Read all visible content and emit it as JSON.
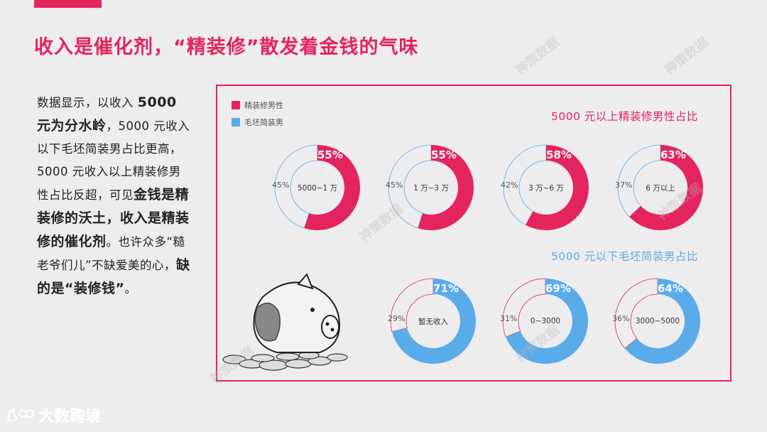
{
  "title": "收入是催化剂，“精装修”散发着金钱的气味",
  "body": {
    "p1": "数据显示，以收入 ",
    "b1": "5000 元为分水岭",
    "p2": "，5000 元收入以下毛坯简装男占比更高， 5000 元收入以上精装修男性占比反超，可见",
    "b2": "金钱是精装修的沃土，收入是精装修的催化剂",
    "p3": "。也许众多“糙老爷们儿”不缺爱美的心，",
    "b3": "缺的是“装修钱”",
    "p4": "。"
  },
  "legend": [
    {
      "label": "精装修男性",
      "color": "#e4245d"
    },
    {
      "label": "毛坯简装男",
      "color": "#5aabea"
    }
  ],
  "section_high": "5000 元以上精装修男性占比",
  "section_low": "5000 元以下毛坯简装男占比",
  "logo_text": "大数跨境",
  "watermark": "神策数据",
  "chart_data": [
    {
      "type": "pie",
      "group": "5000 元以上精装修男性占比",
      "categories": [
        "5000~1 万",
        "1 万~3 万",
        "3 万~6 万",
        "6 万以上"
      ],
      "series": [
        {
          "name": "精装修男性",
          "values": [
            55,
            55,
            58,
            63
          ],
          "labels": [
            "55%",
            "55%",
            "58%",
            "63%"
          ]
        },
        {
          "name": "毛坯简装男",
          "values": [
            45,
            45,
            42,
            37
          ],
          "labels": [
            "45%",
            "45%",
            "42%",
            "37%"
          ]
        }
      ],
      "colors": {
        "main": "#e4245d",
        "other": "#eeeded",
        "outline": "#5aabea"
      }
    },
    {
      "type": "pie",
      "group": "5000 元以下毛坯简装男占比",
      "categories": [
        "暂无收入",
        "0~3000",
        "3000~5000"
      ],
      "series": [
        {
          "name": "毛坯简装男",
          "values": [
            71,
            69,
            64
          ],
          "labels": [
            "71%",
            "69%",
            "64%"
          ]
        },
        {
          "name": "精装修男性",
          "values": [
            29,
            31,
            36
          ],
          "labels": [
            "29%",
            "31%",
            "36%"
          ]
        }
      ],
      "colors": {
        "main": "#5aabea",
        "other": "#eeeded",
        "outline": "#e4245d"
      }
    }
  ]
}
